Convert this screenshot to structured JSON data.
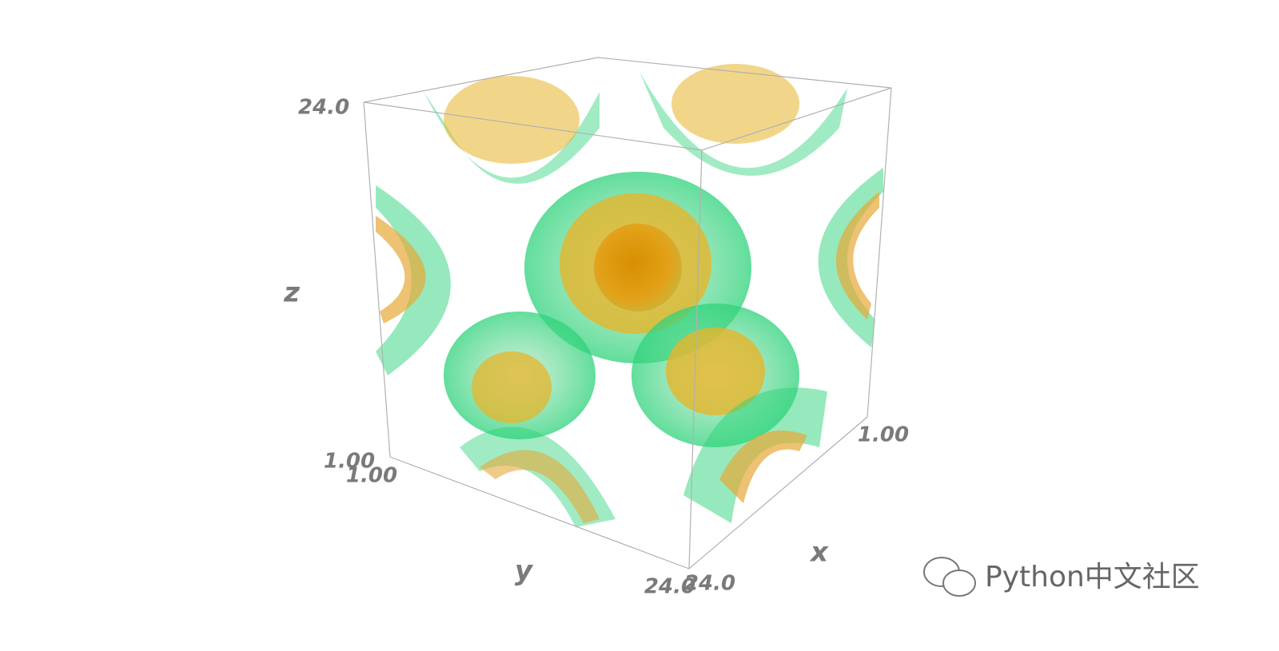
{
  "chart_data": {
    "type": "volume",
    "xlabel": "x",
    "ylabel": "y",
    "zlabel": "z",
    "xlim": [
      1,
      24
    ],
    "ylim": [
      1,
      24
    ],
    "zlim": [
      1,
      24
    ],
    "xticks": [
      {
        "value": 1,
        "label": "1.00"
      },
      {
        "value": 24,
        "label": "24.0"
      }
    ],
    "yticks": [
      {
        "value": 1,
        "label": "1.00"
      },
      {
        "value": 24,
        "label": "24.0"
      }
    ],
    "zticks": [
      {
        "value": 1,
        "label": "1.00"
      },
      {
        "value": 24,
        "label": "24.0"
      }
    ],
    "watermark": "Python中文社区"
  }
}
